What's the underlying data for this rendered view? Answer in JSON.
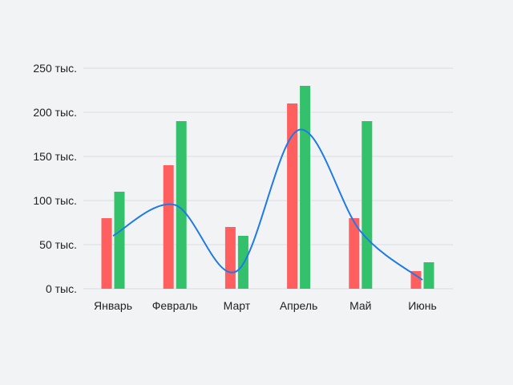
{
  "chart_data": {
    "type": "bar",
    "title": "",
    "xlabel": "",
    "ylabel": "",
    "categories": [
      "Январь",
      "Февраль",
      "Март",
      "Апрель",
      "Май",
      "Июнь"
    ],
    "series": [
      {
        "kind": "bar",
        "color": "#ff5f5f",
        "values": [
          80000,
          140000,
          70000,
          210000,
          80000,
          20000
        ]
      },
      {
        "kind": "bar",
        "color": "#33c26b",
        "values": [
          110000,
          190000,
          60000,
          230000,
          190000,
          30000
        ]
      },
      {
        "kind": "line",
        "smooth": true,
        "color": "#1f7ae8",
        "values": [
          60000,
          95000,
          20000,
          180000,
          65000,
          10000
        ]
      }
    ],
    "ylim": [
      0,
      250000
    ],
    "yticks": [
      0,
      50000,
      100000,
      150000,
      200000,
      250000
    ],
    "ytick_labels": [
      "0 тыс.",
      "50 тыс.",
      "100 тыс.",
      "150 тыс.",
      "200 тыс.",
      "250 тыс."
    ],
    "grid": true,
    "legend": "none"
  }
}
